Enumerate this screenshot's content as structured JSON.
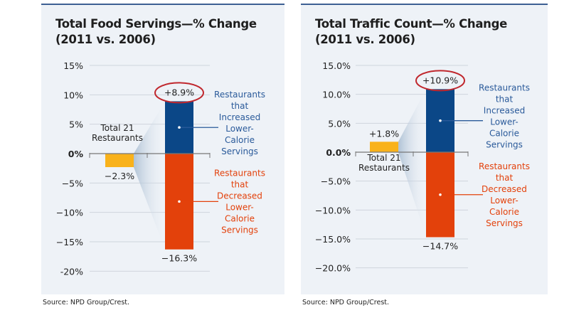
{
  "source_label": "Source: NPD Group/Crest.",
  "colors": {
    "total": "#f9b21b",
    "increased": "#0b4787",
    "decreased": "#e3410b",
    "circle": "#c0272d",
    "increased_text": "#2a5a9a",
    "decreased_text": "#e3410b"
  },
  "chart_data": [
    {
      "type": "bar",
      "title": "Total Food Servings—% Change",
      "subtitle": "(2011 vs. 2006)",
      "ylim": [
        -20,
        15
      ],
      "yticks": [
        15,
        10,
        5,
        0,
        -5,
        -10,
        -15,
        -20
      ],
      "ytick_labels": [
        "15%",
        "10%",
        "5%",
        "0%",
        "−5%",
        "−10%",
        "−15%",
        "-20%"
      ],
      "total": {
        "label": "Total 21 Restaurants",
        "value": -2.3,
        "value_label": "−2.3%"
      },
      "increased": {
        "label": "Restaurants that Increased Lower-Calorie Servings",
        "value": 8.9,
        "value_label": "+8.9%"
      },
      "decreased": {
        "label": "Restaurants that Decreased Lower-Calorie Servings",
        "value": -16.3,
        "value_label": "−16.3%"
      }
    },
    {
      "type": "bar",
      "title": "Total Traffic Count—% Change",
      "subtitle": "(2011 vs. 2006)",
      "ylim": [
        -20,
        15
      ],
      "yticks": [
        15,
        10,
        5,
        0,
        -5,
        -10,
        -15,
        -20
      ],
      "ytick_labels": [
        "15.0%",
        "10.0%",
        "5.0%",
        "0.0%",
        "−5.0%",
        "−10.0%",
        "−15.0%",
        "−20.0%"
      ],
      "total": {
        "label": "Total 21 Restaurants",
        "value": 1.8,
        "value_label": "+1.8%"
      },
      "increased": {
        "label": "Restaurants that Increased Lower-Calorie Servings",
        "value": 10.9,
        "value_label": "+10.9%"
      },
      "decreased": {
        "label": "Restaurants that Decreased Lower-Calorie Servings",
        "value": -14.7,
        "value_label": "−14.7%"
      }
    }
  ]
}
